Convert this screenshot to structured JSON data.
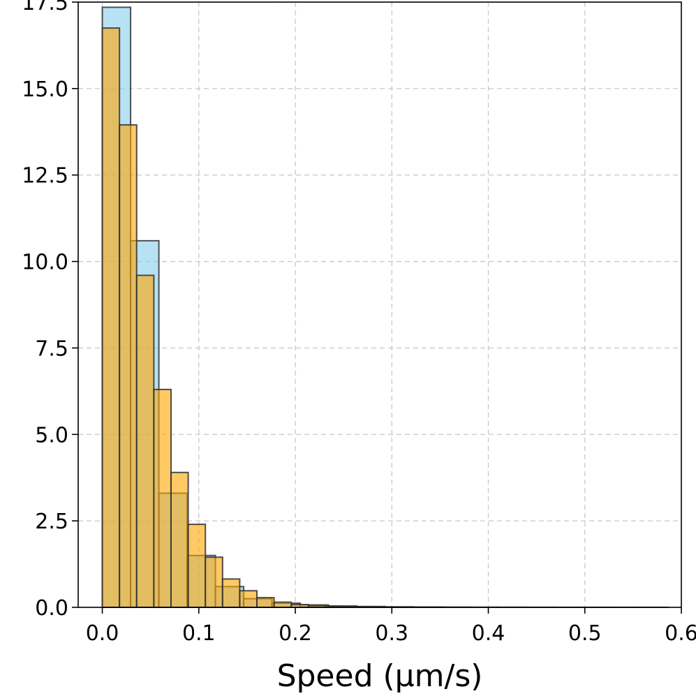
{
  "chart_data": {
    "type": "bar",
    "title": "",
    "xlabel": "Speed (μm/s)",
    "ylabel": "",
    "xlim": [
      -0.025,
      0.6
    ],
    "ylim": [
      0,
      17.5
    ],
    "grid": true,
    "x_ticks": [
      0.0,
      0.1,
      0.2,
      0.3,
      0.4,
      0.5,
      0.6
    ],
    "x_tick_labels": [
      "0.0",
      "0.1",
      "0.2",
      "0.3",
      "0.4",
      "0.5",
      "0.6"
    ],
    "y_ticks": [
      0.0,
      2.5,
      5.0,
      7.5,
      10.0,
      12.5,
      15.0,
      17.5
    ],
    "y_tick_labels": [
      "0.0",
      "2.5",
      "5.0",
      "7.5",
      "10.0",
      "12.5",
      "15.0",
      "17.5"
    ],
    "series": [
      {
        "color": "#87ceeb",
        "bin_edges": [
          0.0,
          0.0293,
          0.0586,
          0.0879,
          0.1172,
          0.1465,
          0.1758,
          0.2051,
          0.2344,
          0.2637,
          0.293,
          0.3223,
          0.3516,
          0.3809,
          0.4102,
          0.4395,
          0.4688,
          0.4981,
          0.5274,
          0.5567,
          0.586
        ],
        "values": [
          17.35,
          10.6,
          3.3,
          1.5,
          0.6,
          0.25,
          0.12,
          0.07,
          0.04,
          0.025,
          0.015,
          0.01,
          0.007,
          0.005,
          0.004,
          0.003,
          0.002,
          0.0015,
          0.001,
          0.001
        ]
      },
      {
        "color": "#ffa500",
        "bin_edges": [
          0.0,
          0.0178,
          0.0356,
          0.0534,
          0.0712,
          0.089,
          0.1068,
          0.1246,
          0.1424,
          0.1602,
          0.178,
          0.1958,
          0.2136,
          0.2314,
          0.2492,
          0.267,
          0.2848,
          0.3026,
          0.3204,
          0.3382,
          0.356
        ],
        "values": [
          16.75,
          13.95,
          9.6,
          6.3,
          3.9,
          2.4,
          1.45,
          0.82,
          0.48,
          0.28,
          0.15,
          0.08,
          0.05,
          0.03,
          0.02,
          0.012,
          0.008,
          0.005,
          0.003,
          0.002
        ]
      }
    ]
  }
}
